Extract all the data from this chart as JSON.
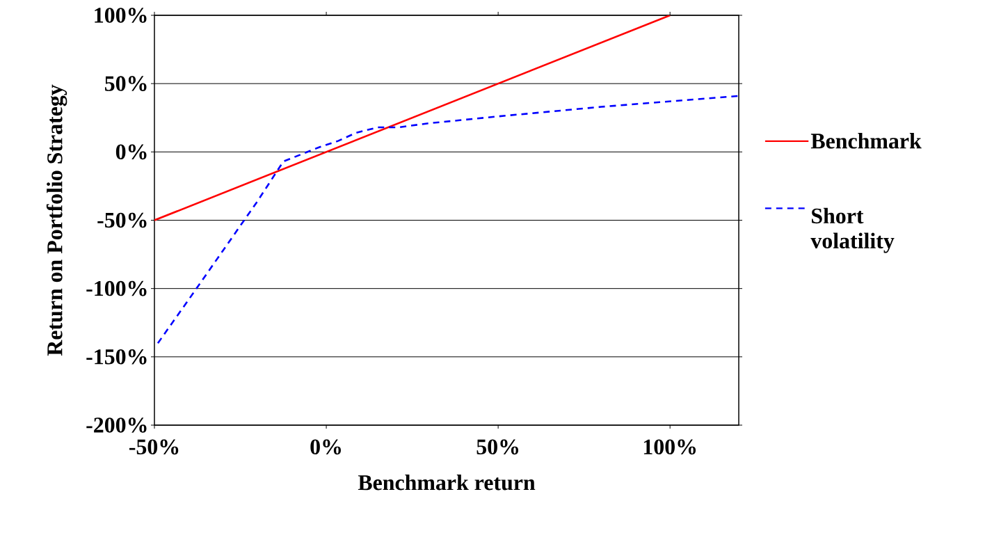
{
  "chart_data": {
    "type": "line",
    "xlabel": "Benchmark return",
    "ylabel": "Return on Portfolio Strategy",
    "xlim": [
      -50,
      120
    ],
    "ylim": [
      -200,
      100
    ],
    "xticks": [
      {
        "value": -50,
        "label": "-50%"
      },
      {
        "value": 0,
        "label": "0%"
      },
      {
        "value": 50,
        "label": "50%"
      },
      {
        "value": 100,
        "label": "100%"
      }
    ],
    "yticks": [
      {
        "value": -200,
        "label": "-200%"
      },
      {
        "value": -150,
        "label": "-150%"
      },
      {
        "value": -100,
        "label": "-100%"
      },
      {
        "value": -50,
        "label": "-50%"
      },
      {
        "value": 0,
        "label": "0%"
      },
      {
        "value": 50,
        "label": "50%"
      },
      {
        "value": 100,
        "label": "100%"
      }
    ],
    "grid": "y",
    "legend": "right",
    "marker": "none",
    "series": [
      {
        "name": "Benchmark",
        "color": "#ff0000",
        "line_style": "solid",
        "x": [
          -50,
          0,
          50,
          100
        ],
        "values": [
          -50,
          0,
          50,
          100
        ]
      },
      {
        "name": "Short volatility",
        "color": "#0000ff",
        "line_style": "dashed",
        "x": [
          -49,
          -40,
          -30,
          -20,
          -12.5,
          -7,
          -2,
          3.4,
          8.7,
          15,
          21,
          30,
          50,
          80,
          120
        ],
        "values": [
          -140,
          -108,
          -72,
          -36,
          -7,
          -1.5,
          3.5,
          8,
          14,
          18,
          18,
          21,
          26,
          33,
          41
        ]
      }
    ]
  }
}
